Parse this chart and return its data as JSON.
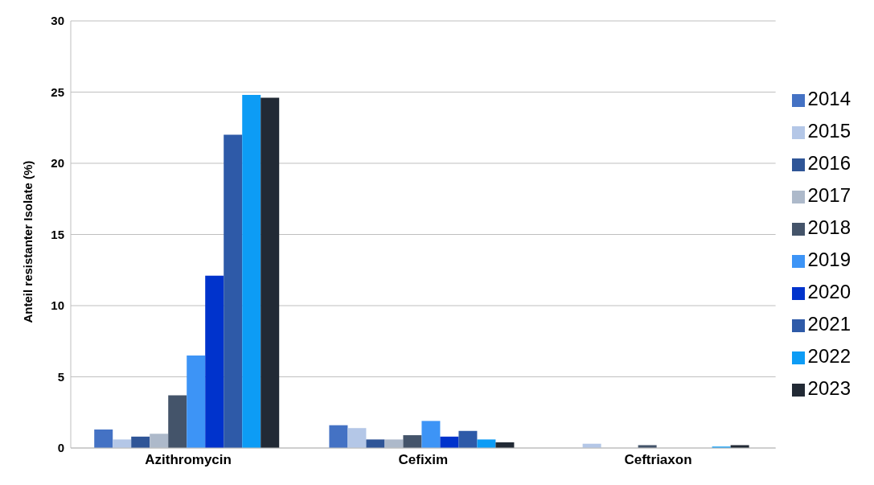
{
  "chart_data": {
    "type": "bar",
    "ylabel": "Anteil resistanter Isolate (%)",
    "categories": [
      "Azithromycin",
      "Cefixim",
      "Ceftriaxon"
    ],
    "series": [
      {
        "name": "2014",
        "color": "#4472c4",
        "values": [
          1.3,
          1.6,
          0
        ]
      },
      {
        "name": "2015",
        "color": "#b4c7e7",
        "values": [
          0.6,
          1.4,
          0.3
        ]
      },
      {
        "name": "2016",
        "color": "#2f5597",
        "values": [
          0.8,
          0.6,
          0
        ]
      },
      {
        "name": "2017",
        "color": "#adb9ca",
        "values": [
          1.0,
          0.6,
          0
        ]
      },
      {
        "name": "2018",
        "color": "#44546a",
        "values": [
          3.7,
          0.9,
          0.2
        ]
      },
      {
        "name": "2019",
        "color": "#3d94f6",
        "values": [
          6.5,
          1.9,
          0
        ]
      },
      {
        "name": "2020",
        "color": "#0033cc",
        "values": [
          12.1,
          0.8,
          0
        ]
      },
      {
        "name": "2021",
        "color": "#2e5aa8",
        "values": [
          22.0,
          1.2,
          0
        ]
      },
      {
        "name": "2022",
        "color": "#0d9cf5",
        "values": [
          24.8,
          0.6,
          0.1
        ]
      },
      {
        "name": "2023",
        "color": "#222a35",
        "values": [
          24.6,
          0.4,
          0.2
        ]
      }
    ],
    "ylim": [
      0,
      30
    ],
    "yticks": [
      0,
      5,
      10,
      15,
      20,
      25,
      30
    ],
    "grid": "y",
    "legend": "right"
  }
}
